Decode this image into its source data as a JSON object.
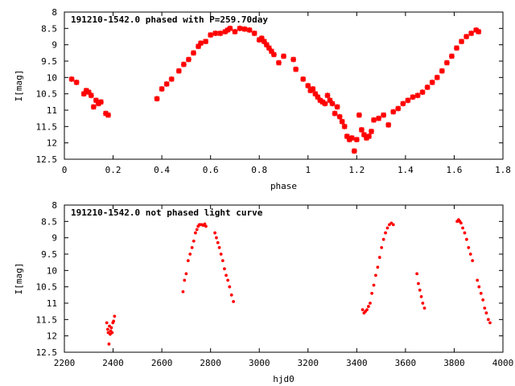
{
  "chart_data": [
    {
      "type": "scatter",
      "title": "191210-1542.0 phased with P=259.70day",
      "xlabel": "phase",
      "ylabel": "I[mag]",
      "xlim": [
        0,
        1.8
      ],
      "ylim": [
        12.5,
        8
      ],
      "y_inverted": true,
      "grid": false,
      "xticks": [
        0,
        0.2,
        0.4,
        0.6,
        0.8,
        1,
        1.2,
        1.4,
        1.6,
        1.8
      ],
      "xtick_labels": [
        "0",
        "0.2",
        "0.4",
        "0.6",
        "0.8",
        "1",
        "1.2",
        "1.4",
        "1.6",
        "1.8"
      ],
      "yticks": [
        8,
        8.5,
        9,
        9.5,
        10,
        10.5,
        11,
        11.5,
        12,
        12.5
      ],
      "ytick_labels": [
        "8",
        "8.5",
        "9",
        "9.5",
        "10",
        "10.5",
        "11",
        "11.5",
        "12",
        "12.5"
      ],
      "marker": "star",
      "color": "#ff0000",
      "series": [
        {
          "x": [
            0.03,
            0.05,
            0.08,
            0.09,
            0.1,
            0.11,
            0.12,
            0.13,
            0.14,
            0.15,
            0.17,
            0.18,
            0.38,
            0.4,
            0.42,
            0.44,
            0.47,
            0.49,
            0.51,
            0.53,
            0.55,
            0.56,
            0.58,
            0.6,
            0.62,
            0.64,
            0.66,
            0.67,
            0.68,
            0.7,
            0.72,
            0.74,
            0.76,
            0.78,
            0.8,
            0.81,
            0.82,
            0.83,
            0.84,
            0.85,
            0.86,
            0.88,
            0.9,
            0.94,
            0.95,
            0.98,
            1.0,
            1.01,
            1.02,
            1.03,
            1.04,
            1.05,
            1.06,
            1.07,
            1.08,
            1.09,
            1.1,
            1.11,
            1.12,
            1.13,
            1.14,
            1.15,
            1.16,
            1.17,
            1.18,
            1.19,
            1.2,
            1.21,
            1.22,
            1.23,
            1.24,
            1.25,
            1.26,
            1.27,
            1.29,
            1.31,
            1.33,
            1.35,
            1.37,
            1.39,
            1.41,
            1.43,
            1.45,
            1.47,
            1.49,
            1.51,
            1.53,
            1.55,
            1.57,
            1.59,
            1.61,
            1.63,
            1.65,
            1.67,
            1.69,
            1.7
          ],
          "y": [
            10.05,
            10.15,
            10.5,
            10.4,
            10.45,
            10.55,
            10.9,
            10.7,
            10.8,
            10.75,
            11.1,
            11.15,
            10.65,
            10.35,
            10.2,
            10.05,
            9.8,
            9.6,
            9.45,
            9.25,
            9.05,
            8.95,
            8.9,
            8.7,
            8.65,
            8.65,
            8.6,
            8.55,
            8.5,
            8.6,
            8.5,
            8.52,
            8.55,
            8.65,
            8.85,
            8.8,
            8.9,
            9.0,
            9.1,
            9.2,
            9.3,
            9.55,
            9.35,
            9.45,
            9.75,
            10.05,
            10.25,
            10.4,
            10.35,
            10.5,
            10.6,
            10.7,
            10.75,
            10.8,
            10.55,
            10.7,
            10.8,
            11.1,
            10.9,
            11.2,
            11.35,
            11.5,
            11.8,
            11.9,
            11.85,
            12.25,
            11.9,
            11.15,
            11.6,
            11.75,
            11.85,
            11.8,
            11.65,
            11.3,
            11.25,
            11.15,
            11.45,
            11.05,
            10.95,
            10.8,
            10.7,
            10.6,
            10.55,
            10.45,
            10.3,
            10.15,
            10.0,
            9.8,
            9.55,
            9.35,
            9.1,
            8.9,
            8.75,
            8.65,
            8.55,
            8.6
          ]
        }
      ]
    },
    {
      "type": "scatter",
      "title": "191210-1542.0 not phased light curve",
      "xlabel": "hjd0",
      "ylabel": "I[mag]",
      "xlim": [
        2200,
        4000
      ],
      "ylim": [
        12.5,
        8
      ],
      "y_inverted": true,
      "grid": false,
      "xticks": [
        2200,
        2400,
        2600,
        2800,
        3000,
        3200,
        3400,
        3600,
        3800,
        4000
      ],
      "xtick_labels": [
        "2200",
        "2400",
        "2600",
        "2800",
        "3000",
        "3200",
        "3400",
        "3600",
        "3800",
        "4000"
      ],
      "yticks": [
        8,
        8.5,
        9,
        9.5,
        10,
        10.5,
        11,
        11.5,
        12,
        12.5
      ],
      "ytick_labels": [
        "8",
        "8.5",
        "9",
        "9.5",
        "10",
        "10.5",
        "11",
        "11.5",
        "12",
        "12.5"
      ],
      "marker": "dot",
      "color": "#ff0000",
      "series": [
        {
          "x": [
            2374,
            2378,
            2380,
            2383,
            2385,
            2388,
            2390,
            2393,
            2396,
            2399,
            2402,
            2406,
            2687,
            2693,
            2700,
            2708,
            2716,
            2724,
            2731,
            2738,
            2744,
            2749,
            2754,
            2759,
            2764,
            2770,
            2776,
            2781,
            2818,
            2824,
            2830,
            2836,
            2843,
            2850,
            2857,
            2864,
            2871,
            2878,
            2886,
            2894,
            3424,
            3430,
            3436,
            3442,
            3448,
            3455,
            3462,
            3470,
            3478,
            3486,
            3494,
            3502,
            3510,
            3518,
            3526,
            3534,
            3542,
            3550,
            3647,
            3653,
            3659,
            3665,
            3671,
            3678,
            3812,
            3818,
            3823,
            3828,
            3835,
            3843,
            3851,
            3859,
            3867,
            3875,
            3895,
            3902,
            3910,
            3918,
            3925,
            3932,
            3940,
            3947
          ],
          "y": [
            11.6,
            11.8,
            11.9,
            12.25,
            11.7,
            11.95,
            11.85,
            11.75,
            11.9,
            11.6,
            11.55,
            11.4,
            10.65,
            10.3,
            10.1,
            9.7,
            9.5,
            9.3,
            9.1,
            8.85,
            8.75,
            8.65,
            8.6,
            8.6,
            8.6,
            8.62,
            8.58,
            8.65,
            8.85,
            9.0,
            9.15,
            9.3,
            9.5,
            9.7,
            9.95,
            10.15,
            10.3,
            10.5,
            10.75,
            10.95,
            11.2,
            11.3,
            11.25,
            11.2,
            11.1,
            11.0,
            10.7,
            10.45,
            10.15,
            9.9,
            9.6,
            9.3,
            9.05,
            8.85,
            8.7,
            8.6,
            8.55,
            8.6,
            10.1,
            10.4,
            10.6,
            10.8,
            11.0,
            11.15,
            8.5,
            8.45,
            8.5,
            8.55,
            8.7,
            8.85,
            9.05,
            9.3,
            9.5,
            9.7,
            10.3,
            10.5,
            10.7,
            10.9,
            11.15,
            11.3,
            11.5,
            11.6
          ]
        }
      ]
    }
  ]
}
